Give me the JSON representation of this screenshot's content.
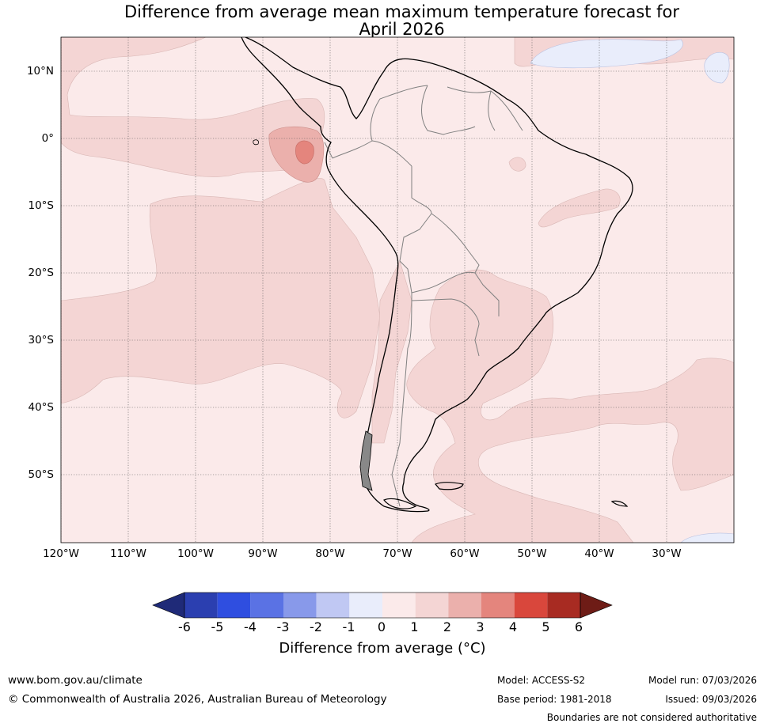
{
  "title": {
    "line1": "Difference from average mean maximum temperature forecast for",
    "line2": "April 2026"
  },
  "map": {
    "lat_labels": [
      "10°N",
      "0°",
      "10°S",
      "20°S",
      "30°S",
      "40°S",
      "50°S"
    ],
    "lon_labels": [
      "120°W",
      "110°W",
      "100°W",
      "90°W",
      "80°W",
      "70°W",
      "60°W",
      "50°W",
      "40°W",
      "30°W"
    ],
    "colors": {
      "land_and_ocean_0_1": "#fbeaea",
      "anom_1_2": "#f4d5d4",
      "anom_2_3": "#ebb0ac",
      "anom_3_4": "#e4857d",
      "anom_neg1_0": "#e9edfb",
      "coast": "#000000",
      "borders": "#808080",
      "grid": "#555555"
    }
  },
  "colorbar": {
    "ticks": [
      "-6",
      "-5",
      "-4",
      "-3",
      "-2",
      "-1",
      "0",
      "1",
      "2",
      "3",
      "4",
      "5",
      "6"
    ],
    "colors": [
      "#1f2a78",
      "#2b3fb0",
      "#2f4ee0",
      "#5a72e4",
      "#8899ea",
      "#c0c8f3",
      "#e9edfb",
      "#fbeaea",
      "#f4d5d4",
      "#ebb0ac",
      "#e4857d",
      "#d9473c",
      "#a82b22",
      "#6e1c16"
    ],
    "label": "Difference from average (°C)"
  },
  "footer": {
    "url": "www.bom.gov.au/climate",
    "copyright": "© Commonwealth of Australia 2026, Australian Bureau of Meteorology",
    "model": "Model: ACCESS-S2",
    "base_period": "Base period: 1981-2018",
    "model_run": "Model run: 07/03/2026",
    "issued": "Issued: 09/03/2026",
    "disclaimer": "Boundaries are not considered authoritative"
  }
}
